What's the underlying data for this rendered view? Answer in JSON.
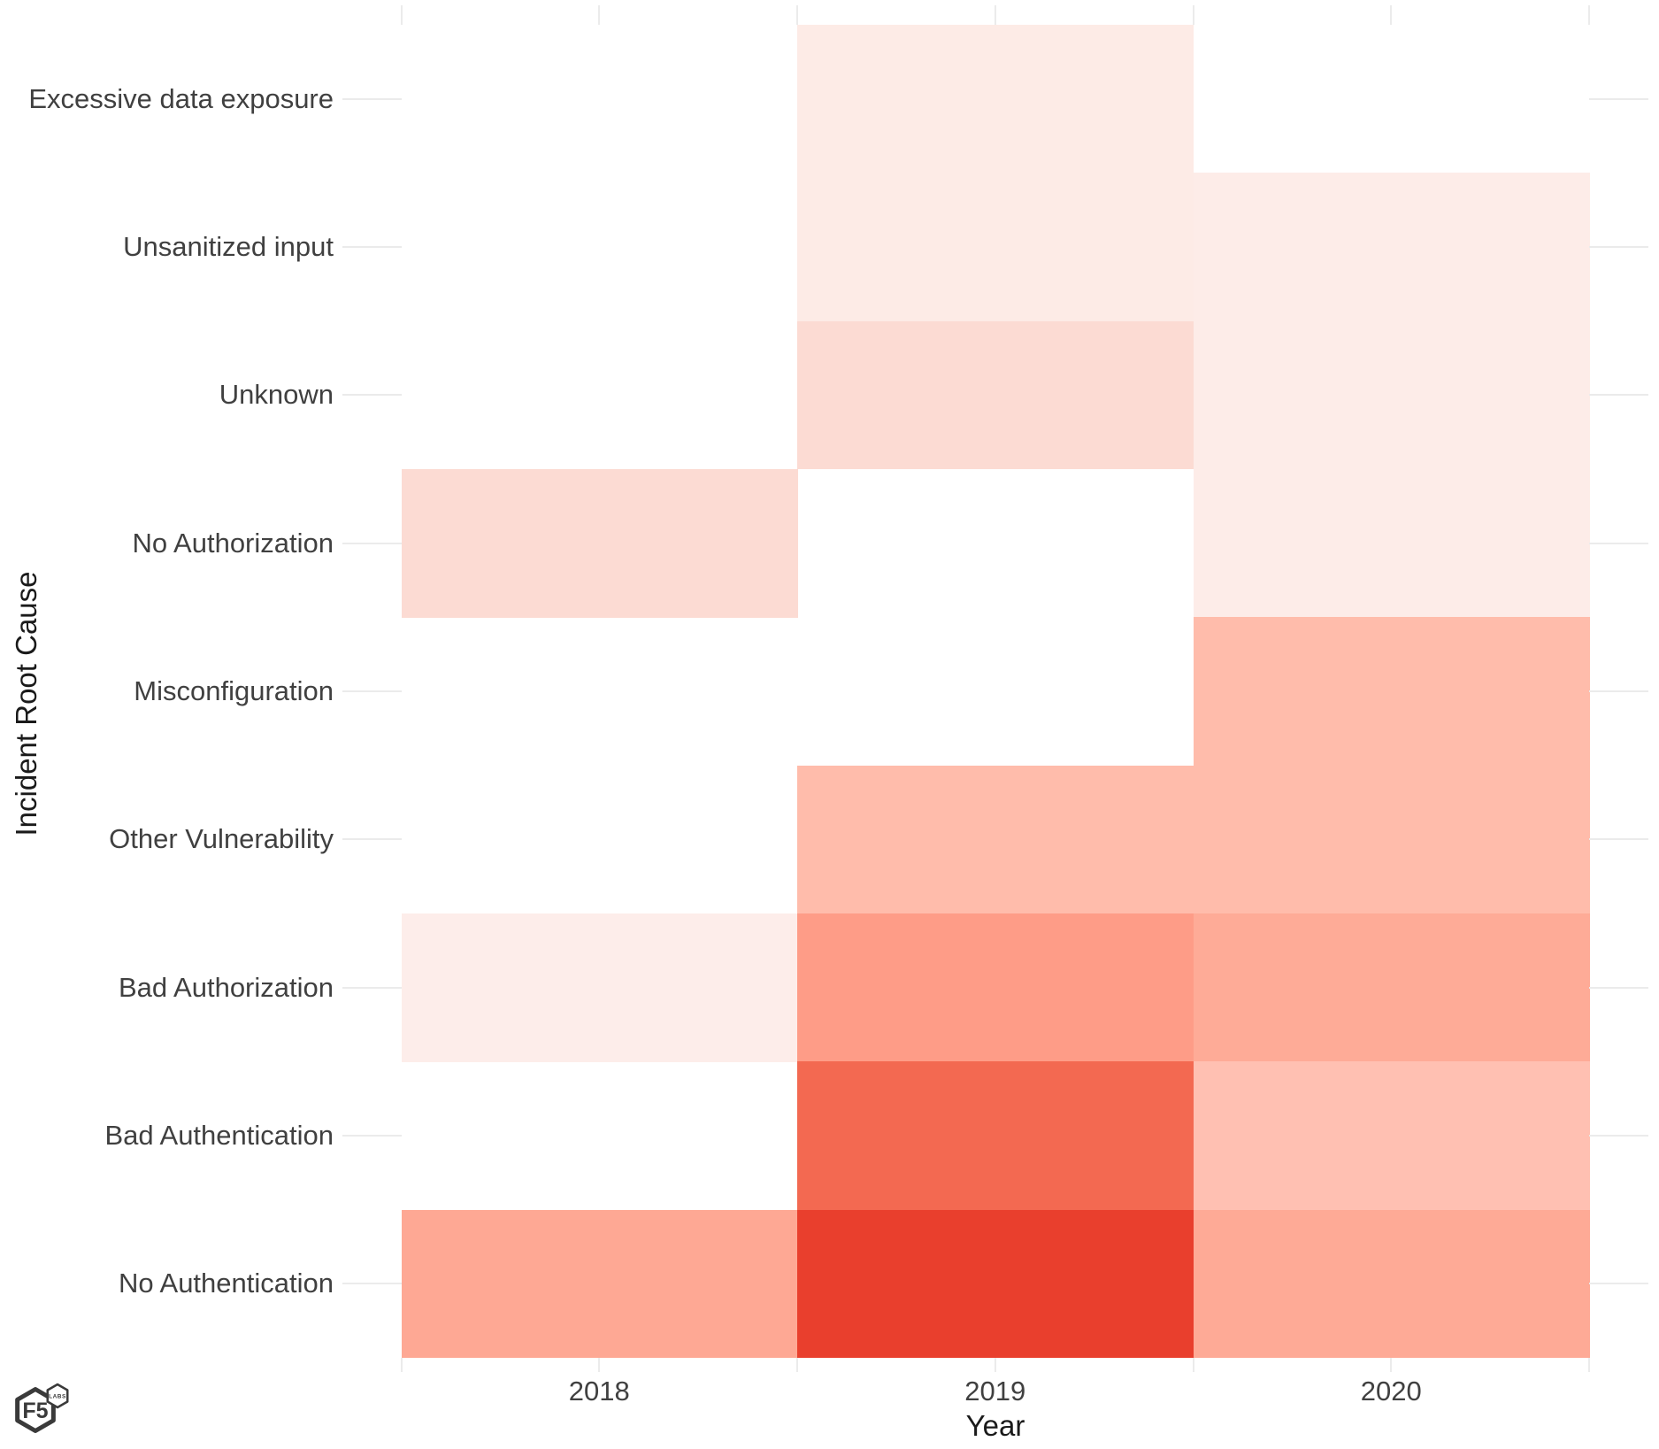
{
  "branding": {
    "logo_main_text": "F5",
    "logo_sub_text": "LABS"
  },
  "chart_data": {
    "type": "heatmap",
    "title": "",
    "x": {
      "title": "Year",
      "categories": [
        "2018",
        "2019",
        "2020"
      ]
    },
    "y": {
      "title": "Incident Root Cause",
      "categories_top_to_bottom": [
        "Excessive data exposure",
        "Unsanitized input",
        "Unknown",
        "No Authorization",
        "Misconfiguration",
        "Other Vulnerability",
        "Bad Authorization",
        "Bad Authentication",
        "No Authentication"
      ]
    },
    "color_scale": {
      "low": "#ffffff",
      "high": "#e93f2d",
      "legend_shown": false
    },
    "rows": [
      {
        "cause": "Excessive data exposure",
        "colors": [
          null,
          "#fdebe6",
          null
        ],
        "relative_intensity": [
          0,
          0.1,
          0
        ]
      },
      {
        "cause": "Unsanitized input",
        "colors": [
          null,
          "#fdebe6",
          "#fdece8"
        ],
        "relative_intensity": [
          0,
          0.1,
          0.1
        ]
      },
      {
        "cause": "Unknown",
        "colors": [
          null,
          "#fcdbd3",
          "#fdece8"
        ],
        "relative_intensity": [
          0,
          0.2,
          0.1
        ]
      },
      {
        "cause": "No Authorization",
        "colors": [
          "#fcdbd3",
          null,
          "#fdece8"
        ],
        "relative_intensity": [
          0.2,
          0,
          0.1
        ]
      },
      {
        "cause": "Misconfiguration",
        "colors": [
          null,
          null,
          "#ffbcab"
        ],
        "relative_intensity": [
          0,
          0,
          0.35
        ]
      },
      {
        "cause": "Other Vulnerability",
        "colors": [
          null,
          "#ffbcab",
          "#ffbcab"
        ],
        "relative_intensity": [
          0,
          0.35,
          0.35
        ]
      },
      {
        "cause": "Bad Authorization",
        "colors": [
          "#fdedea",
          "#fe9c87",
          "#feab97"
        ],
        "relative_intensity": [
          0.1,
          0.5,
          0.45
        ]
      },
      {
        "cause": "Bad Authentication",
        "colors": [
          null,
          "#f36951",
          "#ffc0b2"
        ],
        "relative_intensity": [
          0,
          0.8,
          0.33
        ]
      },
      {
        "cause": "No Authentication",
        "colors": [
          "#fea894",
          "#e93f2d",
          "#feaa96"
        ],
        "relative_intensity": [
          0.45,
          1,
          0.45
        ]
      }
    ]
  }
}
